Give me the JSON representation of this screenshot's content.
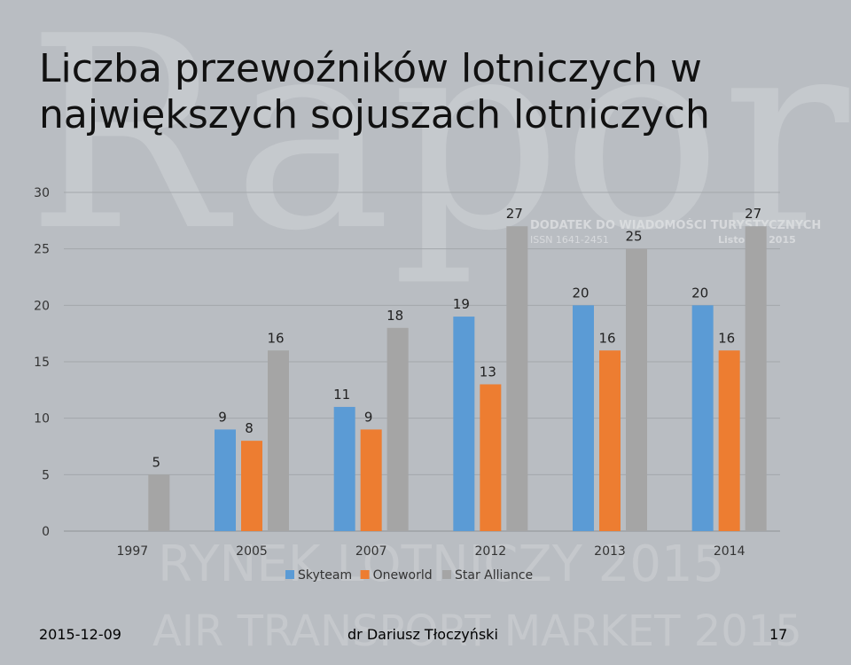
{
  "slide": {
    "title": "Liczba przewoźników lotniczych w największych sojuszach lotniczych",
    "footer_date": "2015-12-09",
    "footer_author": "dr Dariusz Tłoczyński",
    "footer_page": "17"
  },
  "watermark": {
    "word": "Raport",
    "line1": "DODATEK DO WIADOMOŚCI TURYSTYCZNYCH",
    "line2": "ISSN 1641-2451",
    "line3": "Listopad 2015",
    "banner1": "RYNEK LOTNICZY 2015",
    "banner2": "AIR TRANSPORT MARKET 2015"
  },
  "colors": {
    "background": "#b9bdc2",
    "skyteam": "#5b9bd5",
    "oneworld": "#ed7d31",
    "star_alliance": "#a5a5a5"
  },
  "chart_data": {
    "type": "bar",
    "title": "",
    "xlabel": "",
    "ylabel": "",
    "categories": [
      "1997",
      "2005",
      "2007",
      "2012",
      "2013",
      "2014"
    ],
    "series": [
      {
        "name": "Skyteam",
        "values": [
          null,
          9,
          11,
          19,
          20,
          20
        ]
      },
      {
        "name": "Oneworld",
        "values": [
          null,
          8,
          9,
          13,
          16,
          16
        ]
      },
      {
        "name": "Star Alliance",
        "values": [
          5,
          16,
          18,
          27,
          25,
          27
        ]
      }
    ],
    "ylim": [
      0,
      30
    ],
    "yticks": [
      0,
      5,
      10,
      15,
      20,
      25,
      30
    ],
    "grid": true,
    "legend": "bottom",
    "data_labels": true
  }
}
